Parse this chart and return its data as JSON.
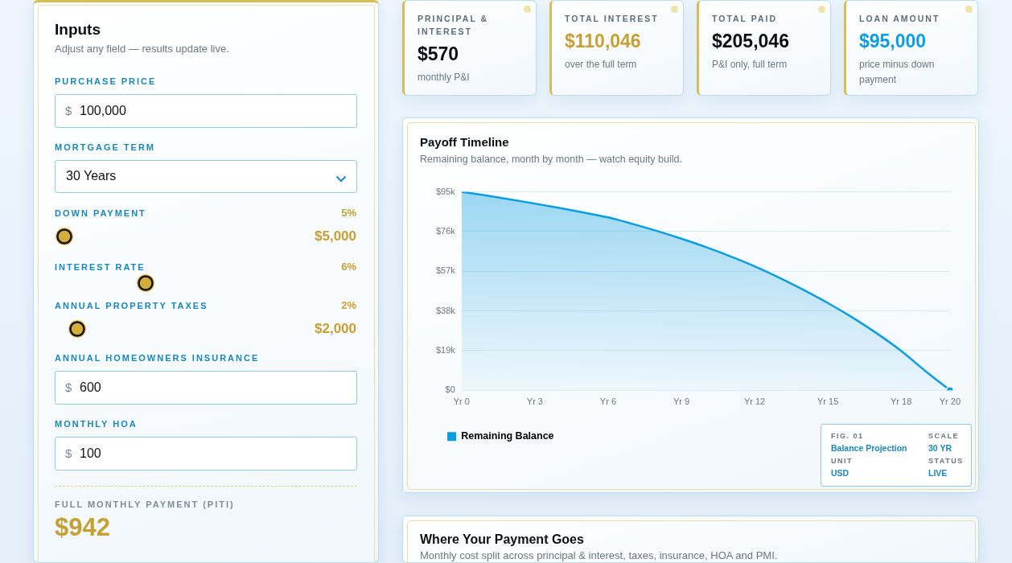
{
  "chart_data": [
    {
      "type": "other",
      "title": "Inputs",
      "subtitle": "Adjust any field — results update live.",
      "annotations": [
        "PURCHASE PRICE",
        "$",
        "100,000",
        "MORTGAGE TERM",
        "30 Years",
        "DOWN PAYMENT",
        "5%",
        "$5,000",
        "INTEREST RATE",
        "6%",
        "ANNUAL PROPERTY TAXES",
        "2%",
        "$2,000",
        "ANNUAL HOMEOWNERS INSURANCE",
        "$",
        "600",
        "MONTHLY HOA",
        "$",
        "100",
        "FULL MONTHLY PAYMENT (PITI)",
        "$942"
      ]
    },
    {
      "type": "other",
      "annotations": [
        "PRINCIPAL & INTEREST",
        "$570",
        "monthly P&I",
        "TOTAL INTEREST",
        "$110,046",
        "over the full term",
        "TOTAL PAID",
        "$205,046",
        "P&I only, full term",
        "LOAN AMOUNT",
        "$95,000",
        "price minus down payment"
      ]
    },
    {
      "type": "area",
      "title": "Payoff Timeline",
      "subtitle": "Remaining balance, month by month — watch equity build.",
      "categories": [
        "Yr 0",
        null,
        null,
        "Yr 3",
        null,
        null,
        "Yr 6",
        null,
        null,
        "Yr 9",
        null,
        null,
        "Yr 12",
        null,
        null,
        "Yr 15",
        null,
        null,
        "Yr 18",
        null,
        "Yr 20"
      ],
      "series": [
        {
          "name": "Remaining Balance",
          "color": "#0a9ddf",
          "values": [
            95000,
            93300,
            91400,
            89400,
            87300,
            85100,
            82800,
            79700,
            76300,
            72600,
            68600,
            64200,
            59400,
            54000,
            48100,
            41800,
            34900,
            27300,
            18900,
            9200,
            0
          ]
        }
      ],
      "ylim": [
        0,
        95000
      ],
      "yticks": [
        {
          "value": 0,
          "label": "$0"
        },
        {
          "value": 19000,
          "label": "$19k"
        },
        {
          "value": 38000,
          "label": "$38k"
        },
        {
          "value": 57000,
          "label": "$57k"
        },
        {
          "value": 76000,
          "label": "$76k"
        },
        {
          "value": 95000,
          "label": "$95k"
        }
      ],
      "grid": "y",
      "legend": "bottom left",
      "annotations": [
        "FIG. 01",
        "SCALE",
        "Balance Projection",
        "30 YR",
        "UNIT",
        "STATUS",
        "USD",
        "LIVE"
      ]
    },
    {
      "type": "other",
      "title": "Where Your Payment Goes",
      "subtitle": "Monthly cost split across principal & interest, taxes, insurance, HOA and PMI."
    }
  ]
}
